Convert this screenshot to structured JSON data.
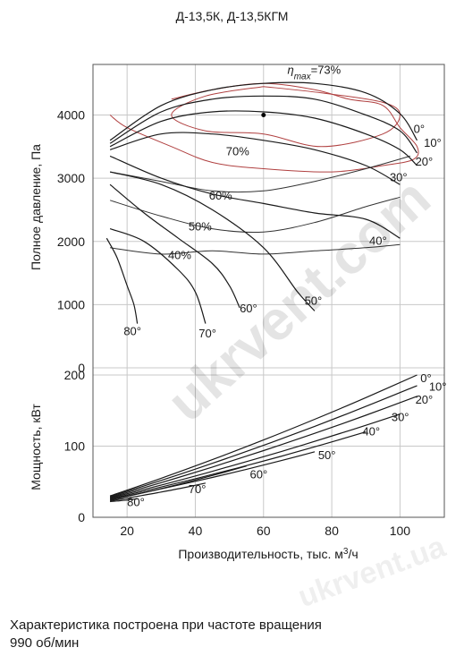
{
  "title": "Д-13,5К, Д-13,5КГМ",
  "footnote": {
    "line1": "Характеристика построена при частоте вращения",
    "line2": "990 об/мин"
  },
  "watermark": "ukrvent.com",
  "watermark_alt": "ukrvent.ua",
  "colors": {
    "curve": "#1a1a1a",
    "efficiency": "#b04040",
    "grid": "#c8c8c8"
  },
  "chart_data": [
    {
      "type": "line",
      "name": "pressure",
      "ylabel": "Полное давление, Па",
      "xlim": [
        10,
        113
      ],
      "ylim": [
        0,
        4800
      ],
      "yticks": [
        0,
        1000,
        2000,
        3000,
        4000
      ],
      "grid": true,
      "series": [
        {
          "name": "0°",
          "x": [
            15,
            30,
            45,
            60,
            75,
            90,
            100,
            105
          ],
          "y": [
            3600,
            4150,
            4400,
            4500,
            4500,
            4350,
            4020,
            3600
          ]
        },
        {
          "name": "10°",
          "x": [
            15,
            30,
            45,
            60,
            75,
            90,
            100,
            105
          ],
          "y": [
            3550,
            4050,
            4250,
            4300,
            4250,
            4000,
            3750,
            3400
          ]
        },
        {
          "name": "20°",
          "x": [
            15,
            30,
            45,
            60,
            75,
            90,
            100,
            105
          ],
          "y": [
            3500,
            3900,
            4050,
            4050,
            3950,
            3700,
            3450,
            3200
          ]
        },
        {
          "name": "30°",
          "x": [
            15,
            30,
            45,
            60,
            75,
            90,
            100
          ],
          "y": [
            3450,
            3700,
            3700,
            3600,
            3450,
            3200,
            2900
          ]
        },
        {
          "name": "40°",
          "x": [
            15,
            30,
            45,
            60,
            75,
            90,
            100
          ],
          "y": [
            3350,
            3000,
            2750,
            2600,
            2450,
            2350,
            2050
          ]
        },
        {
          "name": "50°",
          "x": [
            15,
            30,
            45,
            60,
            70,
            75
          ],
          "y": [
            3100,
            2900,
            2500,
            1900,
            1200,
            900
          ]
        },
        {
          "name": "60°",
          "x": [
            15,
            25,
            35,
            45,
            50,
            53
          ],
          "y": [
            2900,
            2450,
            2050,
            1650,
            1300,
            950
          ]
        },
        {
          "name": "70°",
          "x": [
            15,
            25,
            35,
            40,
            43
          ],
          "y": [
            2200,
            2000,
            1550,
            1200,
            700
          ]
        },
        {
          "name": "80°",
          "x": [
            14,
            17,
            20,
            22,
            23
          ],
          "y": [
            2050,
            1750,
            1300,
            1000,
            700
          ]
        }
      ],
      "series_labels": [
        {
          "text": "0°",
          "x": 104,
          "y": 3720
        },
        {
          "text": "10°",
          "x": 107,
          "y": 3500
        },
        {
          "text": "20°",
          "x": 104.5,
          "y": 3200
        },
        {
          "text": "30°",
          "x": 97,
          "y": 2950
        },
        {
          "text": "40°",
          "x": 91,
          "y": 1950
        },
        {
          "text": "50°",
          "x": 72,
          "y": 1000
        },
        {
          "text": "60°",
          "x": 53,
          "y": 880
        },
        {
          "text": "70°",
          "x": 41,
          "y": 480
        },
        {
          "text": "80°",
          "x": 19,
          "y": 520
        }
      ],
      "efficiency_contours": [
        {
          "label": "η max=73%",
          "label_x": 67,
          "label_y": 4650,
          "x": [
            60,
            77,
            95,
            100,
            95,
            77,
            60,
            43,
            33,
            43,
            60
          ],
          "y": [
            4450,
            4350,
            4200,
            4000,
            3700,
            3500,
            3700,
            3750,
            4000,
            4300,
            4450
          ]
        },
        {
          "label": "70%",
          "label_x": 49,
          "label_y": 3360,
          "x": [
            33,
            45,
            60,
            75,
            85,
            95,
            100,
            105,
            104,
            95,
            80,
            60,
            45,
            33,
            20,
            15
          ],
          "y": [
            4250,
            4400,
            4500,
            4400,
            4250,
            4150,
            3800,
            3500,
            3300,
            3200,
            3100,
            3150,
            3250,
            3500,
            3800,
            4000
          ]
        },
        {
          "label": "60%",
          "label_x": 44,
          "label_y": 2660,
          "x": [
            15,
            30,
            45,
            60,
            75,
            90,
            103
          ],
          "y": [
            3100,
            2950,
            2800,
            2800,
            2950,
            3150,
            3350
          ]
        },
        {
          "label": "50%",
          "label_x": 38,
          "label_y": 2170,
          "x": [
            15,
            30,
            45,
            60,
            75,
            90,
            100
          ],
          "y": [
            2650,
            2400,
            2200,
            2150,
            2300,
            2550,
            2700
          ]
        },
        {
          "label": "40%",
          "label_x": 32,
          "label_y": 1720,
          "x": [
            15,
            30,
            45,
            60,
            75,
            90,
            100
          ],
          "y": [
            1900,
            1800,
            1850,
            1800,
            1850,
            1900,
            1950
          ]
        }
      ],
      "max_efficiency_point": {
        "x": 60,
        "y": 4000
      }
    },
    {
      "type": "line",
      "name": "power",
      "xlabel": "Производительность, тыс. м3/ч",
      "ylabel": "Мощность, кВт",
      "xlim": [
        10,
        113
      ],
      "ylim": [
        0,
        210
      ],
      "xticks": [
        20,
        40,
        60,
        80,
        100
      ],
      "yticks": [
        0,
        100,
        200
      ],
      "grid": true,
      "series": [
        {
          "name": "0°",
          "x": [
            15,
            105
          ],
          "y": [
            30,
            200
          ]
        },
        {
          "name": "10°",
          "x": [
            15,
            105
          ],
          "y": [
            29,
            185
          ]
        },
        {
          "name": "20°",
          "x": [
            15,
            105
          ],
          "y": [
            28,
            170
          ]
        },
        {
          "name": "30°",
          "x": [
            15,
            100
          ],
          "y": [
            27,
            145
          ]
        },
        {
          "name": "40°",
          "x": [
            15,
            90
          ],
          "y": [
            26,
            120
          ]
        },
        {
          "name": "50°",
          "x": [
            15,
            75
          ],
          "y": [
            25,
            92
          ]
        },
        {
          "name": "60°",
          "x": [
            15,
            55
          ],
          "y": [
            24,
            72
          ]
        },
        {
          "name": "70°",
          "x": [
            15,
            43
          ],
          "y": [
            23,
            48
          ]
        },
        {
          "name": "80°",
          "x": [
            15,
            23
          ],
          "y": [
            22,
            26
          ]
        }
      ],
      "series_labels": [
        {
          "text": "0°",
          "x": 106,
          "y": 190
        },
        {
          "text": "10°",
          "x": 108.5,
          "y": 178
        },
        {
          "text": "20°",
          "x": 104.5,
          "y": 160
        },
        {
          "text": "30°",
          "x": 97.5,
          "y": 135
        },
        {
          "text": "40°",
          "x": 89,
          "y": 115
        },
        {
          "text": "50°",
          "x": 76,
          "y": 82
        },
        {
          "text": "60°",
          "x": 56,
          "y": 55
        },
        {
          "text": "70°",
          "x": 38,
          "y": 34
        },
        {
          "text": "80°",
          "x": 20,
          "y": 16
        }
      ]
    }
  ]
}
